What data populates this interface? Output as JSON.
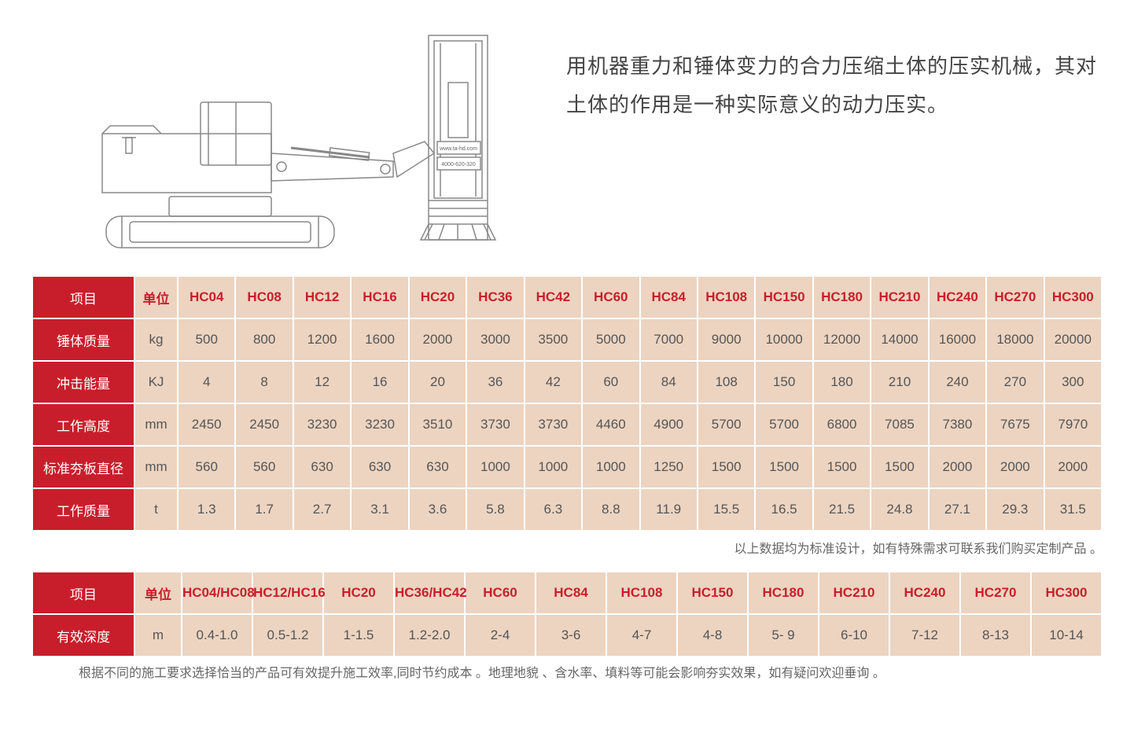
{
  "description": "用机器重力和锤体变力的合力压缩土体的压实机械，其对土体的作用是一种实际意义的动力压实。",
  "colors": {
    "header_bg": "#c81e2b",
    "header_text": "#ffffff",
    "cell_bg": "#ecd4c1",
    "model_text": "#c81e2b",
    "data_text": "#555555",
    "note_text": "#666666",
    "diagram_stroke": "#888888"
  },
  "diagram": {
    "label_url": "www.ta-hd.com",
    "label_phone": "4000-620-320"
  },
  "spec_table": {
    "project_label": "项目",
    "unit_label": "单位",
    "models": [
      "HC04",
      "HC08",
      "HC12",
      "HC16",
      "HC20",
      "HC36",
      "HC42",
      "HC60",
      "HC84",
      "HC108",
      "HC150",
      "HC180",
      "HC210",
      "HC240",
      "HC270",
      "HC300"
    ],
    "rows": [
      {
        "label": "锤体质量",
        "unit": "kg",
        "values": [
          "500",
          "800",
          "1200",
          "1600",
          "2000",
          "3000",
          "3500",
          "5000",
          "7000",
          "9000",
          "10000",
          "12000",
          "14000",
          "16000",
          "18000",
          "20000"
        ]
      },
      {
        "label": "冲击能量",
        "unit": "KJ",
        "values": [
          "4",
          "8",
          "12",
          "16",
          "20",
          "36",
          "42",
          "60",
          "84",
          "108",
          "150",
          "180",
          "210",
          "240",
          "270",
          "300"
        ]
      },
      {
        "label": "工作高度",
        "unit": "mm",
        "values": [
          "2450",
          "2450",
          "3230",
          "3230",
          "3510",
          "3730",
          "3730",
          "4460",
          "4900",
          "5700",
          "5700",
          "6800",
          "7085",
          "7380",
          "7675",
          "7970"
        ]
      },
      {
        "label": "标准夯板直径",
        "unit": "mm",
        "values": [
          "560",
          "560",
          "630",
          "630",
          "630",
          "1000",
          "1000",
          "1000",
          "1250",
          "1500",
          "1500",
          "1500",
          "1500",
          "2000",
          "2000",
          "2000"
        ]
      },
      {
        "label": "工作质量",
        "unit": "t",
        "values": [
          "1.3",
          "1.7",
          "2.7",
          "3.1",
          "3.6",
          "5.8",
          "6.3",
          "8.8",
          "11.9",
          "15.5",
          "16.5",
          "21.5",
          "24.8",
          "27.1",
          "29.3",
          "31.5"
        ]
      }
    ]
  },
  "note1": "以上数据均为标准设计，如有特殊需求可联系我们购买定制产品 。",
  "depth_table": {
    "project_label": "项目",
    "unit_label": "单位",
    "models": [
      "HC04/HC08",
      "HC12/HC16",
      "HC20",
      "HC36/HC42",
      "HC60",
      "HC84",
      "HC108",
      "HC150",
      "HC180",
      "HC210",
      "HC240",
      "HC270",
      "HC300"
    ],
    "row": {
      "label": "有效深度",
      "unit": "m",
      "values": [
        "0.4-1.0",
        "0.5-1.2",
        "1-1.5",
        "1.2-2.0",
        "2-4",
        "3-6",
        "4-7",
        "4-8",
        "5- 9",
        "6-10",
        "7-12",
        "8-13",
        "10-14"
      ]
    }
  },
  "note2": "根据不同的施工要求选择恰当的产品可有效提升施工效率,同时节约成本 。地理地貌 、含水率、填料等可能会影响夯实效果，如有疑问欢迎垂询 。"
}
